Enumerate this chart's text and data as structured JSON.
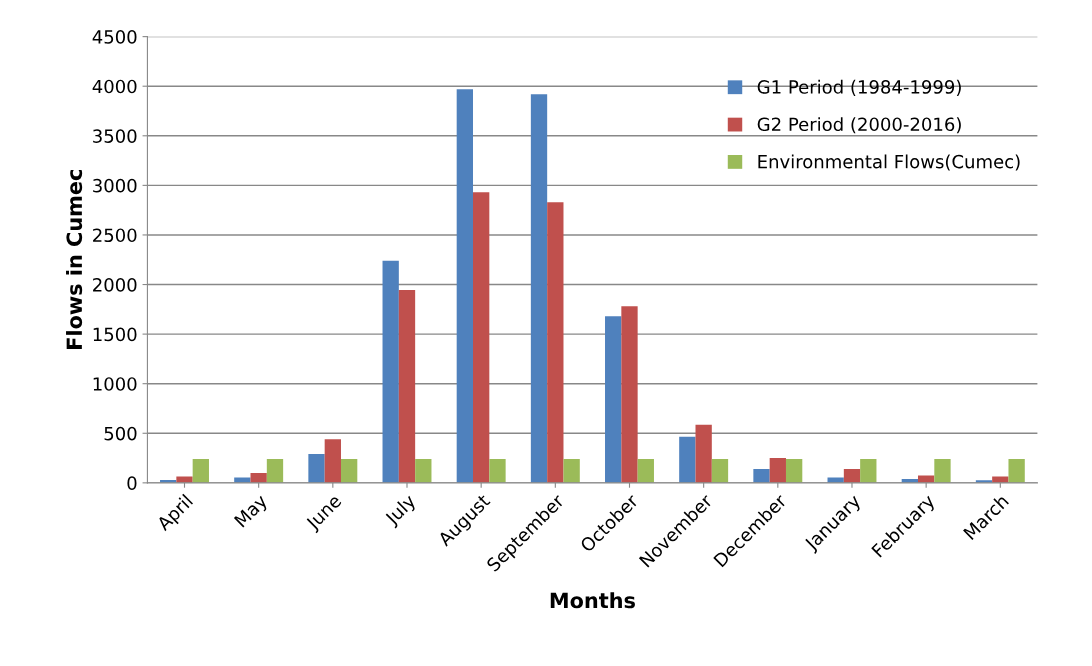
{
  "chart_data": {
    "type": "bar",
    "xlabel": "Months",
    "ylabel": "Flows in Cumec",
    "categories": [
      "April",
      "May",
      "June",
      "July",
      "August",
      "September",
      "October",
      "November",
      "December",
      "January",
      "February",
      "March"
    ],
    "series": [
      {
        "name": "G1 Period (1984-1999)",
        "color": "#4f81bd",
        "values": [
          30,
          55,
          290,
          2240,
          3970,
          3920,
          1680,
          465,
          140,
          55,
          40,
          25
        ]
      },
      {
        "name": "G2 Period (2000-2016)",
        "color": "#c0504d",
        "values": [
          65,
          100,
          440,
          1945,
          2930,
          2830,
          1780,
          585,
          250,
          140,
          75,
          65
        ]
      },
      {
        "name": "Environmental Flows(Cumec)",
        "color": "#9bbb59",
        "values": [
          240,
          240,
          240,
          240,
          240,
          240,
          240,
          240,
          240,
          240,
          240,
          240
        ]
      }
    ],
    "ylim": [
      0,
      4500
    ],
    "yticks": [
      0,
      500,
      1000,
      1500,
      2000,
      2500,
      3000,
      3500,
      4000,
      4500
    ],
    "grid": "y",
    "legend": "right"
  }
}
